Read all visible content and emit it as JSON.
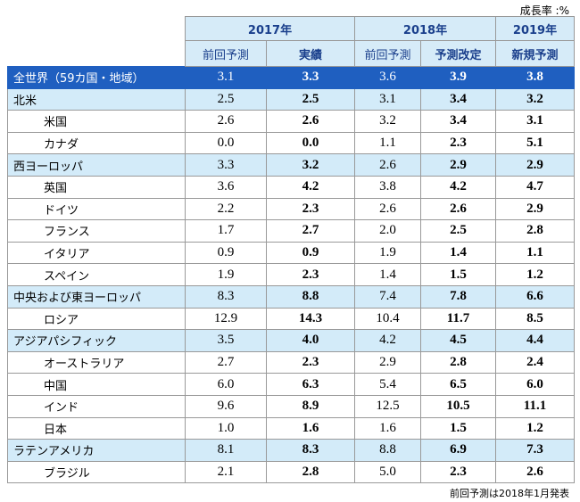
{
  "unit": "成長率 :%",
  "columns": [
    {
      "year": "2017年",
      "sub": [
        "前回予測",
        "実績"
      ]
    },
    {
      "year": "2018年",
      "sub": [
        "前回予測",
        "予測改定"
      ]
    },
    {
      "year": "2019年",
      "sub": [
        "新規予測"
      ]
    }
  ],
  "world": {
    "label": "全世界（59カ国・地域）",
    "values": [
      "3.1",
      "3.3",
      "3.6",
      "3.9",
      "3.8"
    ]
  },
  "regions": [
    {
      "label": "北米",
      "values": [
        "2.5",
        "2.5",
        "3.1",
        "3.4",
        "3.2"
      ],
      "countries": [
        {
          "label": "米国",
          "values": [
            "2.6",
            "2.6",
            "3.2",
            "3.4",
            "3.1"
          ]
        },
        {
          "label": "カナダ",
          "values": [
            "0.0",
            "0.0",
            "1.1",
            "2.3",
            "5.1"
          ]
        }
      ]
    },
    {
      "label": "西ヨーロッパ",
      "values": [
        "3.3",
        "3.2",
        "2.6",
        "2.9",
        "2.9"
      ],
      "countries": [
        {
          "label": "英国",
          "values": [
            "3.6",
            "4.2",
            "3.8",
            "4.2",
            "4.7"
          ]
        },
        {
          "label": "ドイツ",
          "values": [
            "2.2",
            "2.3",
            "2.6",
            "2.6",
            "2.9"
          ]
        },
        {
          "label": "フランス",
          "values": [
            "1.7",
            "2.7",
            "2.0",
            "2.5",
            "2.8"
          ]
        },
        {
          "label": "イタリア",
          "values": [
            "0.9",
            "0.9",
            "1.9",
            "1.4",
            "1.1"
          ]
        },
        {
          "label": "スペイン",
          "values": [
            "1.9",
            "2.3",
            "1.4",
            "1.5",
            "1.2"
          ]
        }
      ]
    },
    {
      "label": "中央および東ヨーロッパ",
      "values": [
        "8.3",
        "8.8",
        "7.4",
        "7.8",
        "6.6"
      ],
      "countries": [
        {
          "label": "ロシア",
          "values": [
            "12.9",
            "14.3",
            "10.4",
            "11.7",
            "8.5"
          ]
        }
      ]
    },
    {
      "label": "アジアパシフィック",
      "values": [
        "3.5",
        "4.0",
        "4.2",
        "4.5",
        "4.4"
      ],
      "countries": [
        {
          "label": "オーストラリア",
          "values": [
            "2.7",
            "2.3",
            "2.9",
            "2.8",
            "2.4"
          ]
        },
        {
          "label": "中国",
          "values": [
            "6.0",
            "6.3",
            "5.4",
            "6.5",
            "6.0"
          ]
        },
        {
          "label": "インド",
          "values": [
            "9.6",
            "8.9",
            "12.5",
            "10.5",
            "11.1"
          ]
        },
        {
          "label": "日本",
          "values": [
            "1.0",
            "1.6",
            "1.6",
            "1.5",
            "1.2"
          ]
        }
      ]
    },
    {
      "label": "ラテンアメリカ",
      "values": [
        "8.1",
        "8.3",
        "8.8",
        "6.9",
        "7.3"
      ],
      "countries": [
        {
          "label": "ブラジル",
          "values": [
            "2.1",
            "2.8",
            "5.0",
            "2.3",
            "2.6"
          ]
        }
      ]
    }
  ],
  "footnote": "前回予測は2018年1月発表"
}
